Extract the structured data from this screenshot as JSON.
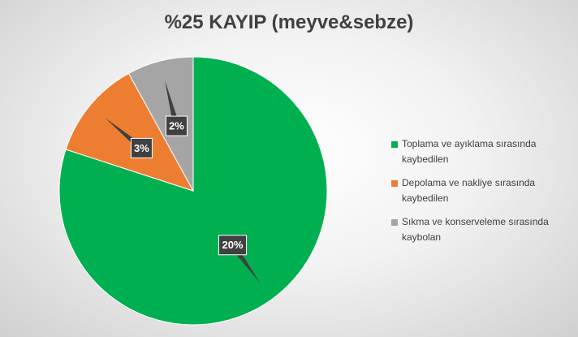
{
  "chart_data": {
    "type": "pie",
    "title": "%25 KAYIP (meyve&sebze)",
    "categories": [
      "Toplama ve ayıklama sırasında kaybedilen",
      "Depolama ve nakliye sırasında kaybedilen",
      "Sıkma ve konserveleme sırasında kaybolan"
    ],
    "values": [
      20,
      3,
      2
    ],
    "value_labels": [
      "20%",
      "3%",
      "2%"
    ],
    "colors": [
      "#00b050",
      "#ed7d31",
      "#a5a5a5"
    ],
    "legend": "right"
  }
}
